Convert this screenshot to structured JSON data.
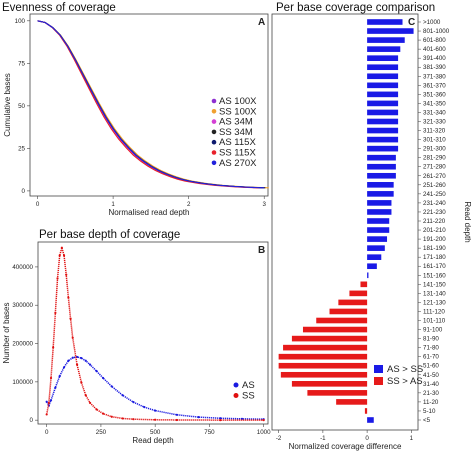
{
  "chart_data": [
    {
      "id": "A",
      "type": "line",
      "title": "Evenness of coverage",
      "panel_label": "A",
      "xlabel": "Normalised read depth",
      "ylabel": "Cumulative bases",
      "xlim": [
        -0.1,
        3.05
      ],
      "ylim": [
        -3,
        104
      ],
      "xticks": [
        0,
        1,
        2,
        3
      ],
      "yticks": [
        0,
        25,
        50,
        75,
        100
      ],
      "legend_position": "right",
      "series": [
        {
          "name": "AS 100X",
          "color": "#8e2fd1",
          "scale": 1.0
        },
        {
          "name": "SS 100X",
          "color": "#f0a030",
          "scale": 1.02
        },
        {
          "name": "AS 34M",
          "color": "#d43fd4",
          "scale": 0.99
        },
        {
          "name": "SS 34M",
          "color": "#222222",
          "scale": 1.005
        },
        {
          "name": "AS 115X",
          "color": "#0d1a6e",
          "scale": 1.0
        },
        {
          "name": "SS 115X",
          "color": "#e8202a",
          "scale": 0.975
        },
        {
          "name": "AS 270X",
          "color": "#2222dd",
          "scale": 1.0
        }
      ],
      "x": [
        0,
        0.1,
        0.2,
        0.3,
        0.4,
        0.5,
        0.6,
        0.7,
        0.8,
        0.9,
        1.0,
        1.1,
        1.2,
        1.3,
        1.4,
        1.5,
        1.6,
        1.7,
        1.8,
        1.9,
        2.0,
        2.2,
        2.4,
        2.6,
        2.8,
        3.0
      ],
      "y": [
        100,
        99,
        96,
        91.5,
        85,
        77,
        68.5,
        60,
        51.5,
        43.5,
        36.5,
        30.5,
        25.5,
        21,
        17.5,
        14.5,
        12,
        10,
        8.3,
        6.9,
        5.8,
        4.3,
        3.3,
        2.6,
        2.1,
        1.8
      ]
    },
    {
      "id": "B",
      "type": "scatter",
      "title": "Per base depth of coverage",
      "panel_label": "B",
      "xlabel": "Read depth",
      "ylabel": "Number of bases",
      "xlim": [
        -40,
        1020
      ],
      "ylim": [
        -10000,
        465000
      ],
      "xticks": [
        0,
        250,
        500,
        750,
        1000
      ],
      "yticks": [
        0,
        100000,
        200000,
        300000,
        400000
      ],
      "legend_position": "right",
      "series": [
        {
          "name": "AS",
          "color": "#1a1ae0",
          "x": [
            0,
            10,
            20,
            40,
            60,
            80,
            100,
            120,
            140,
            160,
            180,
            200,
            230,
            260,
            300,
            350,
            400,
            450,
            500,
            600,
            700,
            800,
            900,
            1000
          ],
          "y": [
            48000,
            38000,
            52000,
            85000,
            115000,
            138000,
            155000,
            163000,
            165000,
            162000,
            155000,
            145000,
            128000,
            110000,
            88000,
            65000,
            47000,
            34000,
            25000,
            14000,
            8000,
            5000,
            3500,
            2500
          ]
        },
        {
          "name": "SS",
          "color": "#e01010",
          "x": [
            0,
            10,
            20,
            30,
            40,
            50,
            60,
            70,
            80,
            90,
            100,
            110,
            120,
            140,
            160,
            180,
            200,
            230,
            260,
            300,
            350,
            400,
            500,
            600,
            800,
            1000
          ],
          "y": [
            15000,
            45000,
            110000,
            190000,
            280000,
            370000,
            430000,
            450000,
            430000,
            380000,
            320000,
            265000,
            215000,
            145000,
            98000,
            65000,
            45000,
            28000,
            17000,
            9000,
            4500,
            2500,
            1000,
            500,
            200,
            100
          ]
        }
      ]
    },
    {
      "id": "C",
      "type": "bar",
      "orientation": "horizontal",
      "title": "Per base coverage comparison",
      "panel_label": "C",
      "xlabel": "Normalized coverage difference",
      "ylabel": "Read depth",
      "xlim": [
        -2.15,
        1.15
      ],
      "xticks": [
        -2,
        -1,
        0,
        1
      ],
      "legend_position": "bottom-right",
      "legend": [
        {
          "name": "AS > SS",
          "color": "#1a1ae6"
        },
        {
          "name": "SS > AS",
          "color": "#e61a1a"
        }
      ],
      "categories": [
        ">1000",
        "801-1000",
        "601-800",
        "401-600",
        "391-400",
        "381-390",
        "371-380",
        "361-370",
        "351-360",
        "341-350",
        "331-340",
        "321-330",
        "311-320",
        "301-310",
        "291-300",
        "281-290",
        "271-280",
        "261-270",
        "251-260",
        "241-250",
        "231-240",
        "221-230",
        "211-220",
        "201-210",
        "191-200",
        "181-190",
        "171-180",
        "161-170",
        "151-160",
        "141-150",
        "131-140",
        "121-130",
        "111-120",
        "101-110",
        "91-100",
        "81-90",
        "71-80",
        "61-70",
        "51-60",
        "41-50",
        "31-40",
        "21-30",
        "11-20",
        "5-10",
        "<5"
      ],
      "values": [
        0.8,
        1.05,
        0.85,
        0.75,
        0.7,
        0.7,
        0.7,
        0.7,
        0.7,
        0.7,
        0.7,
        0.7,
        0.7,
        0.7,
        0.7,
        0.65,
        0.65,
        0.65,
        0.6,
        0.6,
        0.55,
        0.55,
        0.5,
        0.5,
        0.45,
        0.4,
        0.32,
        0.22,
        0.03,
        -0.15,
        -0.4,
        -0.65,
        -0.85,
        -1.15,
        -1.45,
        -1.7,
        -1.9,
        -2.0,
        -2.0,
        -1.95,
        -1.7,
        -1.35,
        -0.7,
        -0.05,
        0.15
      ]
    }
  ]
}
